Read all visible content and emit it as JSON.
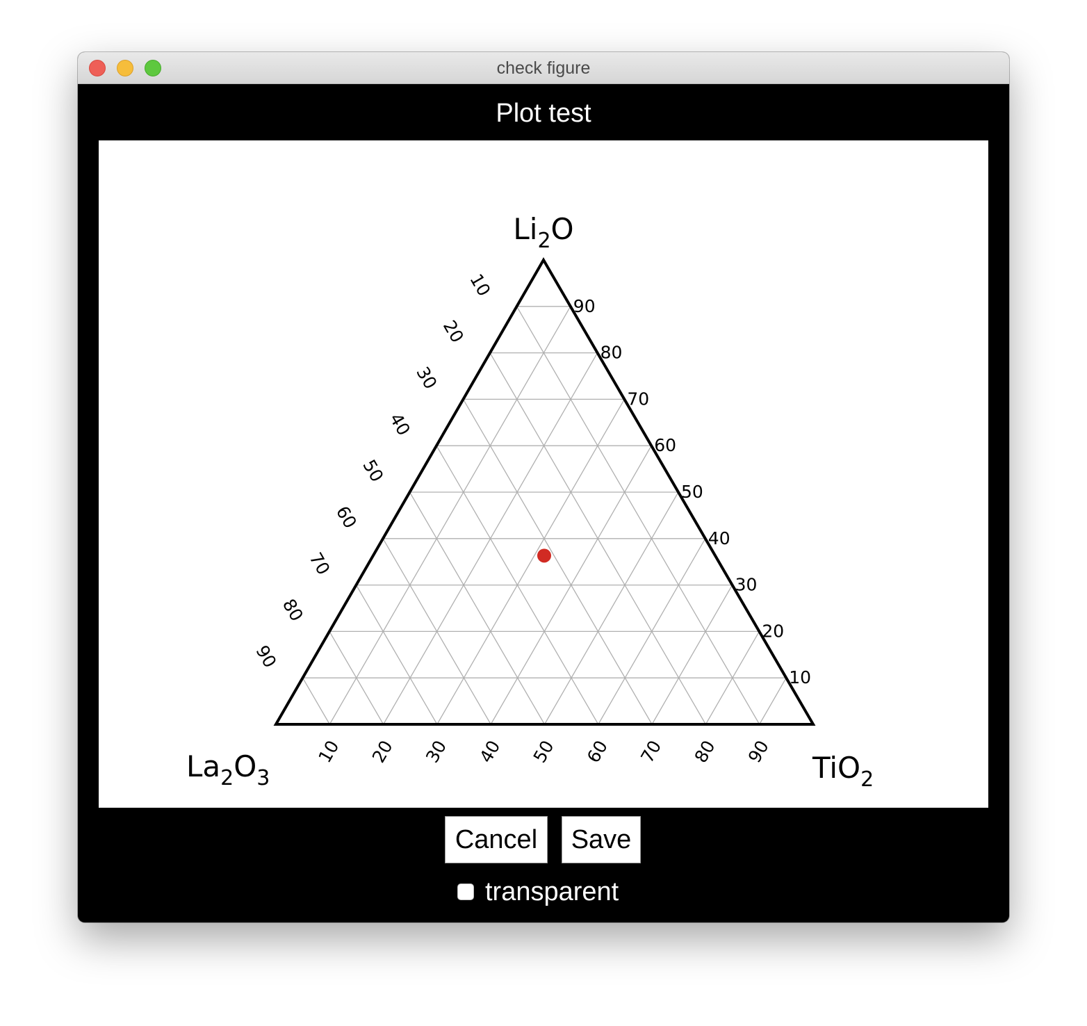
{
  "window": {
    "title": "check figure"
  },
  "plot_heading": "Plot test",
  "chart_data": {
    "type": "scatter",
    "subtype": "ternary",
    "axes": {
      "top": {
        "label": "Li",
        "sub": "2",
        "tail": "O"
      },
      "left": {
        "label": "La",
        "sub1": "2",
        "mid": "O",
        "sub2": "3"
      },
      "right": {
        "label": "Ti",
        "mid": "O",
        "sub": "2"
      }
    },
    "ticks": [
      10,
      20,
      30,
      40,
      50,
      60,
      70,
      80,
      90
    ],
    "tick_labels": [
      "10",
      "20",
      "30",
      "40",
      "50",
      "60",
      "70",
      "80",
      "90"
    ],
    "grid": true,
    "gridline_color": "#b0b0b0",
    "points": [
      {
        "Li2O": 33.3,
        "La2O3": 33.3,
        "TiO2": 33.3,
        "color": "#d12b23"
      }
    ]
  },
  "buttons": {
    "cancel": "Cancel",
    "save": "Save"
  },
  "transparent_checkbox": {
    "label": "transparent",
    "checked": false
  }
}
